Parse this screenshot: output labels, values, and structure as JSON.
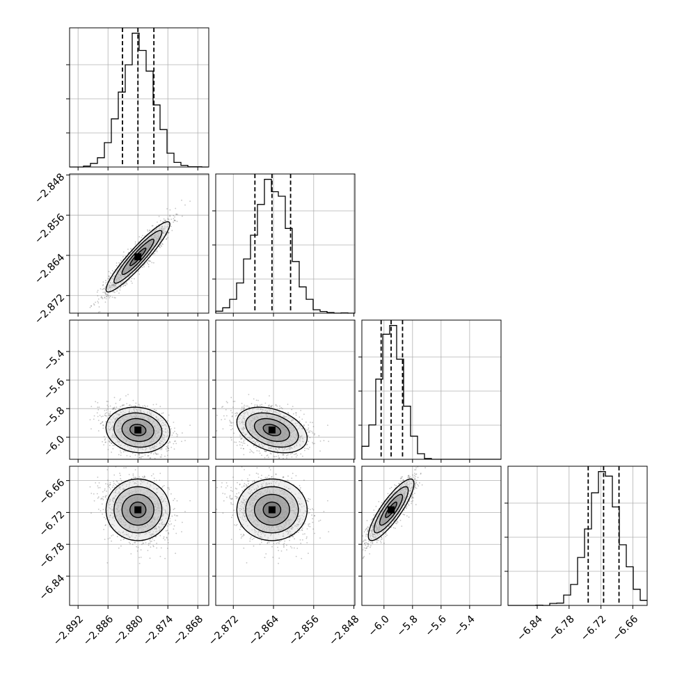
{
  "chart_data": {
    "type": "corner",
    "ticks": [
      [
        "−2.892",
        "−2.886",
        "−2.880",
        "−2.874",
        "−2.868"
      ],
      [
        "−2.872",
        "−2.864",
        "−2.856",
        "−2.848"
      ],
      [
        "−6.0",
        "−5.8",
        "−5.6",
        "−5.4"
      ],
      [
        "−6.84",
        "−6.78",
        "−6.72",
        "−6.66"
      ]
    ],
    "tick_values": [
      [
        -2.892,
        -2.886,
        -2.88,
        -2.874,
        -2.868
      ],
      [
        -2.872,
        -2.864,
        -2.856,
        -2.848
      ],
      [
        -6.0,
        -5.8,
        -5.6,
        -5.4
      ],
      [
        -6.84,
        -6.78,
        -6.72,
        -6.66
      ]
    ],
    "ranges": [
      [
        -2.8937,
        -2.8658
      ],
      [
        -2.8755,
        -2.8478
      ],
      [
        -6.155,
        -5.18
      ],
      [
        -6.895,
        -6.633
      ]
    ],
    "parameters": [
      {
        "median": -2.88,
        "q16": -2.8831,
        "q84": -2.8768,
        "std": 0.0032
      },
      {
        "median": -2.8643,
        "q16": -2.8677,
        "q84": -2.8606,
        "std": 0.0035
      },
      {
        "median": -5.95,
        "q16": -6.02,
        "q84": -5.87,
        "std": 0.08
      },
      {
        "median": -6.715,
        "q16": -6.744,
        "q84": -6.686,
        "std": 0.029
      }
    ],
    "correlations": [
      {
        "i": 1,
        "j": 0,
        "rho": 0.93
      },
      {
        "i": 2,
        "j": 0,
        "rho": -0.1
      },
      {
        "i": 2,
        "j": 1,
        "rho": -0.35
      },
      {
        "i": 3,
        "j": 0,
        "rho": 0.0
      },
      {
        "i": 3,
        "j": 1,
        "rho": 0.0
      },
      {
        "i": 3,
        "j": 2,
        "rho": 0.85
      }
    ],
    "grid": true,
    "histogram_bins": 20,
    "density_contours": 3
  }
}
